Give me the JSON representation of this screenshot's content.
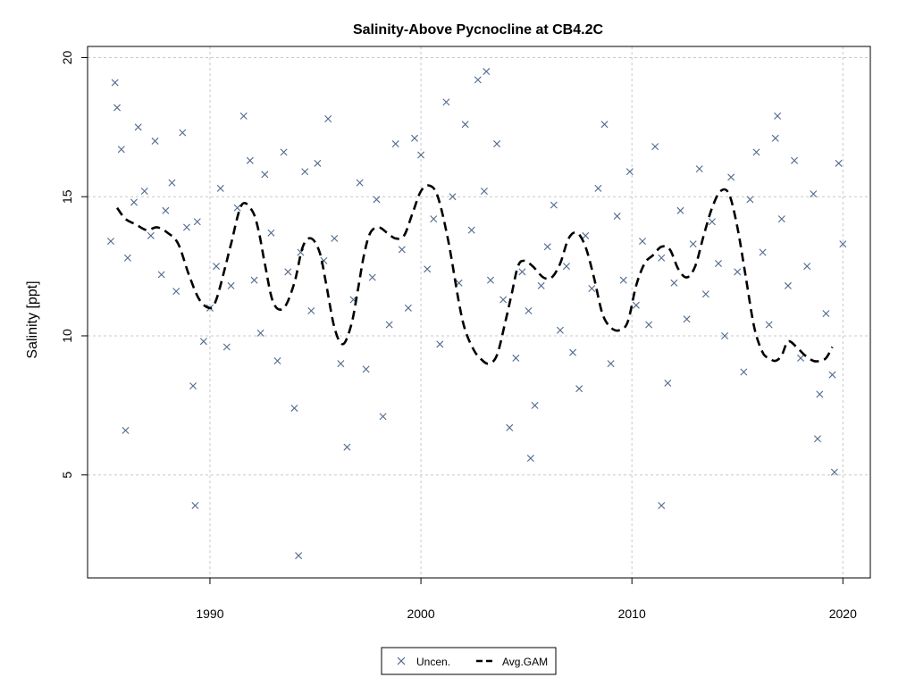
{
  "chart_data": {
    "type": "scatter",
    "title": "Salinity-Above Pycnocline at CB4.2C",
    "xlabel": "",
    "ylabel": "Salinity [ppt]",
    "xlim": [
      1984.2,
      2021.3
    ],
    "ylim": [
      1.3,
      20.4
    ],
    "x_ticks": [
      1990,
      2000,
      2010,
      2020
    ],
    "y_ticks": [
      5,
      10,
      15,
      20
    ],
    "grid": true,
    "legend_position": "bottom-center",
    "colors": {
      "points": "#4f6a8c",
      "gam": "#000000",
      "grid": "#c8c8c8"
    },
    "series": [
      {
        "name": "Uncen.",
        "kind": "points",
        "x": [
          1985.3,
          1985.5,
          1985.6,
          1985.8,
          1986.1,
          1986.4,
          1986.6,
          1986.9,
          1987.2,
          1987.4,
          1987.7,
          1987.9,
          1988.2,
          1988.4,
          1988.7,
          1988.9,
          1989.2,
          1989.4,
          1989.7,
          1990.0,
          1990.3,
          1990.5,
          1990.8,
          1991.0,
          1991.3,
          1991.6,
          1991.9,
          1992.1,
          1992.4,
          1992.6,
          1992.9,
          1993.2,
          1993.5,
          1993.7,
          1994.0,
          1994.3,
          1994.5,
          1994.8,
          1995.1,
          1995.4,
          1995.6,
          1995.9,
          1996.2,
          1996.5,
          1996.8,
          1997.1,
          1997.4,
          1997.7,
          1997.9,
          1998.2,
          1998.5,
          1998.8,
          1999.1,
          1999.4,
          1999.7,
          2000.0,
          2000.3,
          2000.6,
          2000.9,
          2001.2,
          2001.5,
          2001.8,
          2002.1,
          2002.4,
          2002.7,
          2003.0,
          2003.3,
          2003.6,
          2003.9,
          2004.2,
          2004.5,
          2004.8,
          2005.1,
          2005.4,
          2005.7,
          2006.0,
          2006.3,
          2006.6,
          2006.9,
          2007.2,
          2007.5,
          2007.8,
          2008.1,
          2008.4,
          2008.7,
          2009.0,
          2009.3,
          2009.6,
          2009.9,
          2010.2,
          2010.5,
          2010.8,
          2011.1,
          2011.4,
          2011.7,
          2012.0,
          2012.3,
          2012.6,
          2012.9,
          2013.2,
          2013.5,
          2013.8,
          2014.1,
          2014.4,
          2014.7,
          2015.0,
          2015.3,
          2015.6,
          2015.9,
          2016.2,
          2016.5,
          2016.8,
          2017.1,
          2017.4,
          2017.7,
          2018.0,
          2018.3,
          2018.6,
          2018.9,
          2019.2,
          2019.5,
          2019.8,
          2020.0,
          2019.6,
          2018.8,
          2016.9,
          2011.4,
          1994.2,
          1989.3,
          2005.2,
          2003.1,
          1986.0
        ],
        "y": [
          13.4,
          19.1,
          18.2,
          16.7,
          12.8,
          14.8,
          17.5,
          15.2,
          13.6,
          17.0,
          12.2,
          14.5,
          15.5,
          11.6,
          17.3,
          13.9,
          8.2,
          14.1,
          9.8,
          11.0,
          12.5,
          15.3,
          9.6,
          11.8,
          14.6,
          17.9,
          16.3,
          12.0,
          10.1,
          15.8,
          13.7,
          9.1,
          16.6,
          12.3,
          7.4,
          13.0,
          15.9,
          10.9,
          16.2,
          12.7,
          17.8,
          13.5,
          9.0,
          6.0,
          11.3,
          15.5,
          8.8,
          12.1,
          14.9,
          7.1,
          10.4,
          16.9,
          13.1,
          11.0,
          17.1,
          16.5,
          12.4,
          14.2,
          9.7,
          18.4,
          15.0,
          11.9,
          17.6,
          13.8,
          19.2,
          15.2,
          12.0,
          16.9,
          11.3,
          6.7,
          9.2,
          12.3,
          10.9,
          7.5,
          11.8,
          13.2,
          14.7,
          10.2,
          12.5,
          9.4,
          8.1,
          13.6,
          11.7,
          15.3,
          17.6,
          9.0,
          14.3,
          12.0,
          15.9,
          11.1,
          13.4,
          10.4,
          16.8,
          12.8,
          8.3,
          11.9,
          14.5,
          10.6,
          13.3,
          16.0,
          11.5,
          14.1,
          12.6,
          10.0,
          15.7,
          12.3,
          8.7,
          14.9,
          16.6,
          13.0,
          10.4,
          17.1,
          14.2,
          11.8,
          16.3,
          9.2,
          12.5,
          15.1,
          7.9,
          10.8,
          8.6,
          16.2,
          13.3,
          5.1,
          6.3,
          17.9,
          3.9,
          2.1,
          3.9,
          5.6,
          19.5,
          6.6
        ],
        "marker": "x"
      },
      {
        "name": "Avg.GAM",
        "kind": "line",
        "style": "dashed",
        "x": [
          1985.6,
          1986.0,
          1986.5,
          1987.0,
          1987.5,
          1988.0,
          1988.5,
          1989.0,
          1989.5,
          1990.0,
          1990.3,
          1990.7,
          1991.0,
          1991.5,
          1992.0,
          1992.3,
          1992.6,
          1993.0,
          1993.5,
          1994.0,
          1994.4,
          1994.8,
          1995.2,
          1995.5,
          1995.9,
          1996.3,
          1996.7,
          1997.0,
          1997.3,
          1997.6,
          1998.0,
          1998.4,
          1998.8,
          1999.2,
          1999.6,
          2000.0,
          2000.4,
          2000.8,
          2001.3,
          2001.8,
          2002.1,
          2002.5,
          2002.8,
          2003.2,
          2003.6,
          2004.0,
          2004.3,
          2004.6,
          2004.9,
          2005.3,
          2005.8,
          2006.2,
          2006.6,
          2007.0,
          2007.4,
          2007.8,
          2008.2,
          2008.6,
          2009.0,
          2009.4,
          2009.8,
          2010.2,
          2010.6,
          2011.0,
          2011.4,
          2011.8,
          2012.2,
          2012.6,
          2013.0,
          2013.4,
          2013.8,
          2014.2,
          2014.6,
          2015.0,
          2015.4,
          2015.8,
          2016.2,
          2016.5,
          2016.8,
          2017.1,
          2017.4,
          2017.8,
          2018.2,
          2018.6,
          2018.9,
          2019.2,
          2019.5
        ],
        "y": [
          14.6,
          14.2,
          14.0,
          13.8,
          13.9,
          13.7,
          13.3,
          12.2,
          11.3,
          11.0,
          11.3,
          12.4,
          13.3,
          14.7,
          14.5,
          13.8,
          12.6,
          11.2,
          11.0,
          11.9,
          13.2,
          13.5,
          13.0,
          11.9,
          10.3,
          9.7,
          10.4,
          11.6,
          12.9,
          13.7,
          13.9,
          13.7,
          13.5,
          13.6,
          14.4,
          15.2,
          15.4,
          15.0,
          13.4,
          11.2,
          10.2,
          9.5,
          9.2,
          9.0,
          9.3,
          10.5,
          11.5,
          12.5,
          12.7,
          12.5,
          12.1,
          12.1,
          12.6,
          13.5,
          13.7,
          13.2,
          12.1,
          10.8,
          10.3,
          10.2,
          10.5,
          11.8,
          12.6,
          12.9,
          13.2,
          13.1,
          12.4,
          12.1,
          12.5,
          13.6,
          14.6,
          15.2,
          15.1,
          13.9,
          12.1,
          10.3,
          9.4,
          9.2,
          9.1,
          9.3,
          9.8,
          9.6,
          9.3,
          9.1,
          9.1,
          9.2,
          9.6
        ]
      }
    ]
  }
}
